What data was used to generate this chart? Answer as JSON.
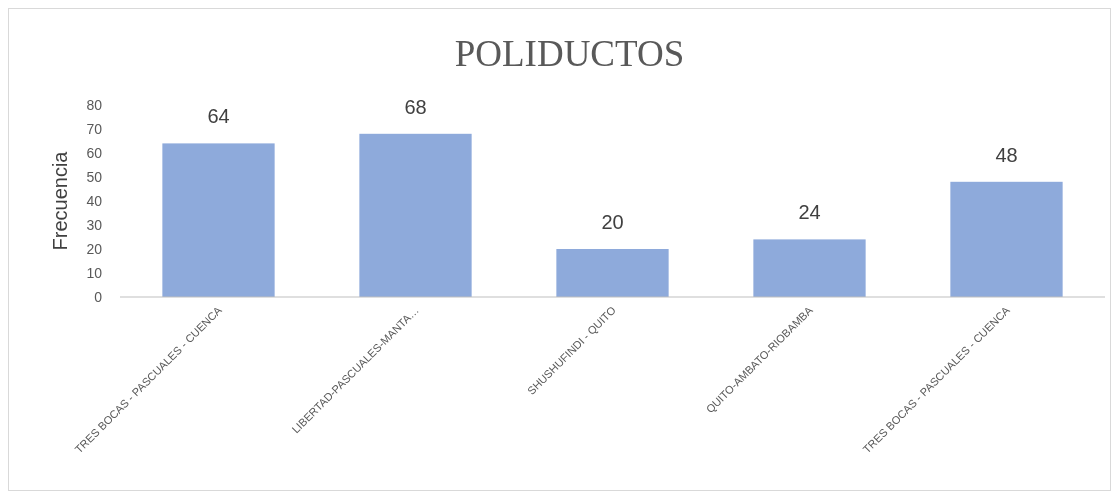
{
  "chart_data": {
    "type": "bar",
    "title": "POLIDUCTOS",
    "ylabel": "Frecuencia",
    "categories": [
      "TRES BOCAS - PASCUALES - CUENCA",
      "LIBERTAD-PASCUALES-MANTA…",
      "SHUSHUFINDI - QUITO",
      "QUITO-AMBATO-RIOBAMBA",
      "TRES BOCAS - PASCUALES - CUENCA"
    ],
    "values": [
      64,
      68,
      20,
      24,
      48
    ],
    "color": "#8eaadb",
    "ylim": [
      0,
      80
    ],
    "yticks": [
      0,
      10,
      20,
      30,
      40,
      50,
      60,
      70,
      80
    ],
    "grid": false,
    "data_labels": true
  }
}
